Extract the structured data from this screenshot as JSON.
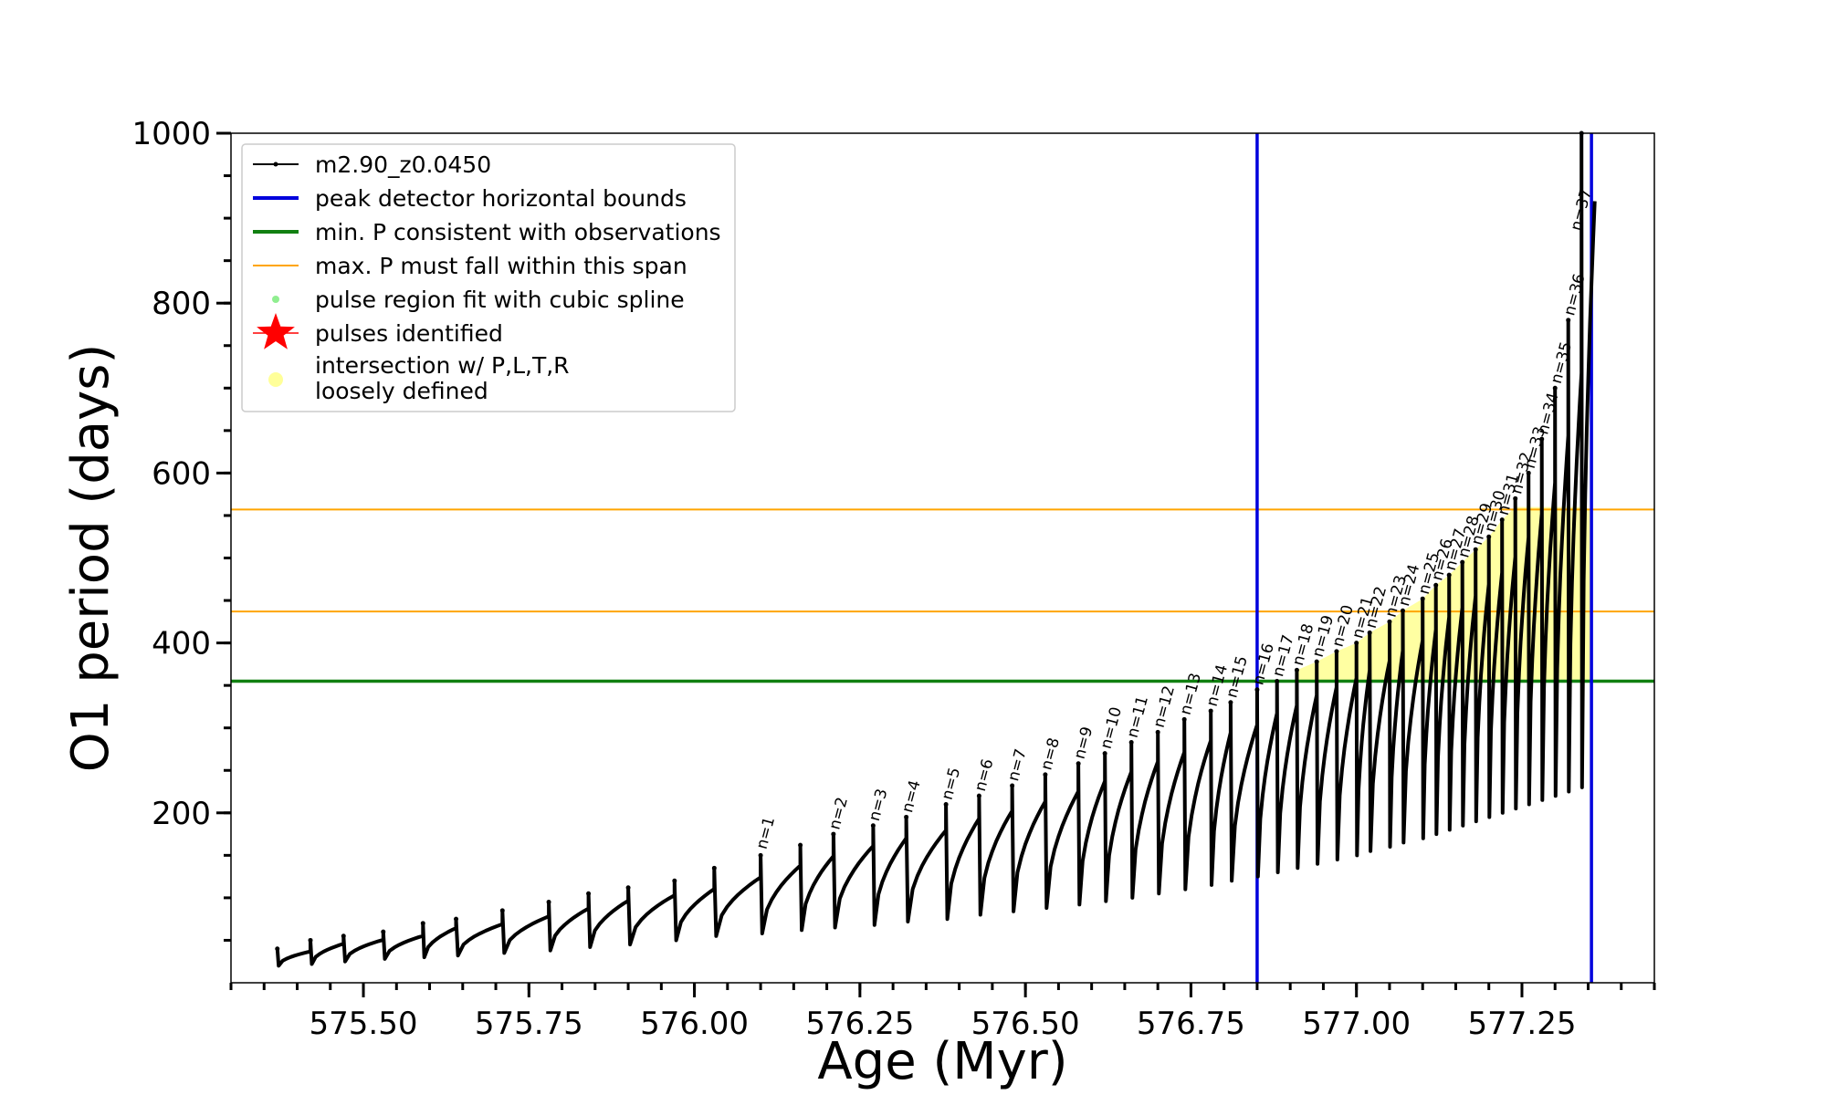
{
  "chart_data": {
    "type": "line",
    "xlabel": "Age (Myr)",
    "ylabel": "O1 period (days)",
    "xlim": [
      575.3,
      577.45
    ],
    "ylim": [
      0,
      1000
    ],
    "x_ticks": [
      575.5,
      575.75,
      576.0,
      576.25,
      576.5,
      576.75,
      577.0,
      577.25
    ],
    "x_tick_labels": [
      "575.50",
      "575.75",
      "576.00",
      "576.25",
      "576.50",
      "576.75",
      "577.00",
      "577.25"
    ],
    "y_ticks": [
      200,
      400,
      600,
      800,
      1000
    ],
    "y_tick_labels": [
      "200",
      "400",
      "600",
      "800",
      "1000"
    ],
    "legend_position": "top-left",
    "legend": [
      {
        "label": "m2.90_z0.0450",
        "kind": "line-marker",
        "color": "#000000"
      },
      {
        "label": "peak detector horizontal bounds",
        "kind": "line",
        "color": "#0000dd"
      },
      {
        "label": "min. P consistent with observations",
        "kind": "line",
        "color": "#118011"
      },
      {
        "label": "max. P must fall within this span",
        "kind": "thin-line",
        "color": "#ffa500"
      },
      {
        "label": "pulse region fit with cubic spline",
        "kind": "dot",
        "color": "#90ee90"
      },
      {
        "label": "pulses identified",
        "kind": "star",
        "color": "#ff0000"
      },
      {
        "label": "intersection w/ P,L,T,R",
        "label2": "loosely defined",
        "kind": "dot",
        "color": "#ffff99"
      }
    ],
    "reference_lines": {
      "vertical": {
        "x": [
          576.85,
          577.355
        ],
        "color": "#0000dd"
      },
      "min_period": {
        "y": 355,
        "color": "#118011"
      },
      "max_period_span": {
        "y": [
          437,
          557
        ],
        "color": "#ffa500"
      }
    },
    "series": [
      {
        "name": "m2.90_z0.0450",
        "color": "#000000",
        "pulse_start_age": [
          575.37,
          575.42,
          575.47,
          575.53,
          575.59,
          575.64,
          575.71,
          575.78,
          575.84,
          575.9,
          575.97,
          576.03,
          576.1,
          576.16,
          576.21,
          576.27,
          576.32,
          576.38,
          576.43,
          576.48,
          576.53,
          576.58,
          576.62,
          576.66,
          576.7,
          576.74,
          576.78,
          576.81,
          576.85,
          576.88,
          576.91,
          576.94,
          576.97,
          577.0,
          577.02,
          577.05,
          577.07,
          577.1,
          577.12,
          577.14,
          577.16,
          577.18,
          577.2,
          577.22,
          577.24,
          577.26,
          577.28,
          577.3,
          577.32,
          577.34
        ],
        "pulse_peak_period": [
          40,
          50,
          55,
          60,
          70,
          75,
          85,
          95,
          105,
          112,
          120,
          135,
          150,
          162,
          175,
          185,
          195,
          210,
          220,
          232,
          245,
          258,
          270,
          283,
          295,
          310,
          320,
          330,
          345,
          355,
          368,
          378,
          390,
          400,
          412,
          425,
          438,
          452,
          468,
          480,
          495,
          510,
          525,
          545,
          570,
          600,
          640,
          700,
          780,
          1000
        ],
        "pulse_min_period": [
          20,
          22,
          25,
          28,
          30,
          32,
          35,
          38,
          42,
          45,
          50,
          55,
          58,
          62,
          65,
          68,
          72,
          75,
          80,
          84,
          88,
          92,
          96,
          100,
          105,
          110,
          115,
          120,
          125,
          130,
          135,
          140,
          145,
          150,
          155,
          160,
          165,
          170,
          175,
          180,
          185,
          190,
          195,
          200,
          205,
          210,
          215,
          220,
          225,
          230
        ]
      }
    ],
    "pulse_labels": [
      {
        "text": "n=1",
        "age": 576.1,
        "period": 152
      },
      {
        "text": "n=2",
        "age": 576.21,
        "period": 175
      },
      {
        "text": "n=3",
        "age": 576.27,
        "period": 185
      },
      {
        "text": "n=4",
        "age": 576.32,
        "period": 195
      },
      {
        "text": "n=5",
        "age": 576.38,
        "period": 210
      },
      {
        "text": "n=6",
        "age": 576.43,
        "period": 220
      },
      {
        "text": "n=7",
        "age": 576.48,
        "period": 232
      },
      {
        "text": "n=8",
        "age": 576.53,
        "period": 245
      },
      {
        "text": "n=9",
        "age": 576.58,
        "period": 258
      },
      {
        "text": "n=10",
        "age": 576.62,
        "period": 270
      },
      {
        "text": "n=11",
        "age": 576.66,
        "period": 283
      },
      {
        "text": "n=12",
        "age": 576.7,
        "period": 295
      },
      {
        "text": "n=13",
        "age": 576.74,
        "period": 310
      },
      {
        "text": "n=14",
        "age": 576.78,
        "period": 320
      },
      {
        "text": "n=15",
        "age": 576.81,
        "period": 330
      },
      {
        "text": "n=16",
        "age": 576.85,
        "period": 345
      },
      {
        "text": "n=17",
        "age": 576.88,
        "period": 355
      },
      {
        "text": "n=18",
        "age": 576.91,
        "period": 368
      },
      {
        "text": "n=19",
        "age": 576.94,
        "period": 378
      },
      {
        "text": "n=20",
        "age": 576.97,
        "period": 390
      },
      {
        "text": "n=21",
        "age": 577.0,
        "period": 400
      },
      {
        "text": "n=22",
        "age": 577.02,
        "period": 412
      },
      {
        "text": "n=23",
        "age": 577.05,
        "period": 425
      },
      {
        "text": "n=24",
        "age": 577.07,
        "period": 438
      },
      {
        "text": "n=25",
        "age": 577.1,
        "period": 452
      },
      {
        "text": "n=26",
        "age": 577.12,
        "period": 468
      },
      {
        "text": "n=27",
        "age": 577.14,
        "period": 480
      },
      {
        "text": "n=28",
        "age": 577.16,
        "period": 495
      },
      {
        "text": "n=29",
        "age": 577.18,
        "period": 510
      },
      {
        "text": "n=30",
        "age": 577.2,
        "period": 525
      },
      {
        "text": "n=31",
        "age": 577.22,
        "period": 545
      },
      {
        "text": "n=32",
        "age": 577.24,
        "period": 570
      },
      {
        "text": "n=33",
        "age": 577.26,
        "period": 600
      },
      {
        "text": "n=34",
        "age": 577.28,
        "period": 640
      },
      {
        "text": "n=35",
        "age": 577.3,
        "period": 700
      },
      {
        "text": "n=36",
        "age": 577.32,
        "period": 780
      },
      {
        "text": "n=37",
        "age": 577.33,
        "period": 880
      }
    ]
  }
}
